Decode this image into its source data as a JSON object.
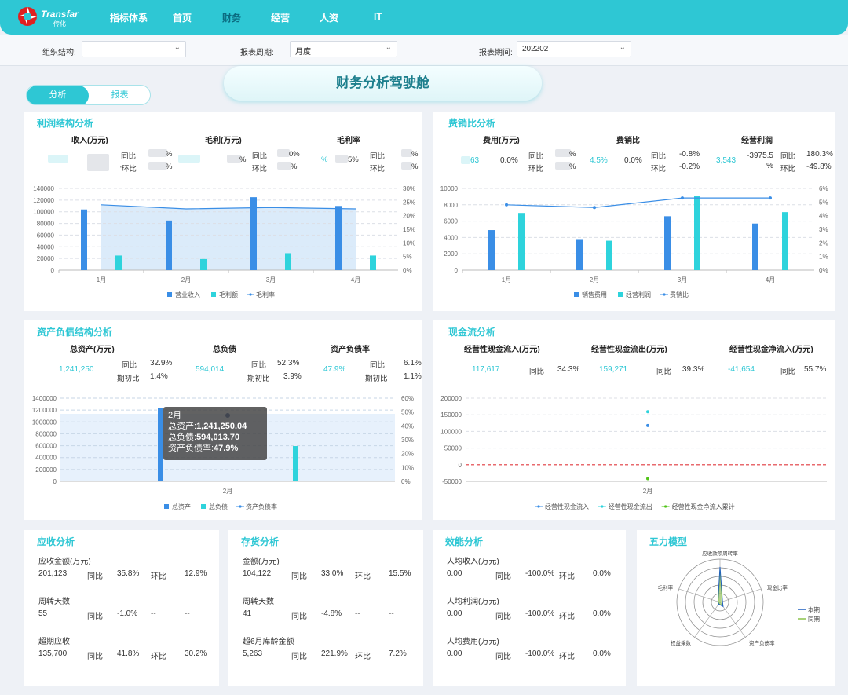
{
  "brand": {
    "name": "Transfar",
    "sub": "传化"
  },
  "nav": [
    {
      "label": "指标体系",
      "active": false
    },
    {
      "label": "首页",
      "active": false
    },
    {
      "label": "财务",
      "active": true
    },
    {
      "label": "经营",
      "active": false
    },
    {
      "label": "人资",
      "active": false
    },
    {
      "label": "IT",
      "active": false
    }
  ],
  "filters": {
    "org_label": "组织结构:",
    "org_value": "",
    "period_label": "报表周期:",
    "period_value": "月度",
    "date_label": "报表期间:",
    "date_value": "202202"
  },
  "tabs": {
    "analysis": "分析",
    "report": "报表"
  },
  "page_title": "财务分析驾驶舱",
  "profit": {
    "title": "利润结构分析",
    "h_income": "收入(万元)",
    "h_gross": "毛利(万元)",
    "h_margin": "毛利率",
    "yoy": "同比",
    "mom": "环比",
    "frag_a": "'环比",
    "frag_b": "%",
    "frag_c": "%",
    "frag_d": "%",
    "frag_e": "0%",
    "frag_f": "%",
    "frag_g": "%",
    "frag_h": "5%",
    "frag_i": "%",
    "frag_j": "%",
    "chart_data": {
      "type": "bar",
      "categories": [
        "1月",
        "2月",
        "3月",
        "4月"
      ],
      "series": [
        {
          "name": "营业收入",
          "values": [
            104000,
            85000,
            125000,
            110000
          ]
        },
        {
          "name": "毛利额",
          "values": [
            25000,
            19000,
            29000,
            25000
          ]
        },
        {
          "name": "毛利率",
          "values": [
            24,
            22.5,
            23,
            22.5
          ]
        }
      ],
      "y_ticks": [
        "140000",
        "120000",
        "100000",
        "80000",
        "60000",
        "40000",
        "20000",
        "0"
      ],
      "y2_ticks": [
        "30%",
        "25%",
        "20%",
        "15%",
        "10%",
        "5%",
        "0%"
      ],
      "ylim": [
        0,
        140000
      ],
      "y2lim": [
        0,
        30
      ]
    }
  },
  "expense": {
    "title": "费销比分析",
    "h_expense": "费用(万元)",
    "h_ratio": "费销比",
    "h_op_profit": "经营利润",
    "expense_value": "63",
    "expense_rate": "0.0%",
    "yoy": "同比",
    "mom": "环比",
    "yoy_frag": "%",
    "mom_frag": "%",
    "ratio_value": "4.5%",
    "ratio_rate": "0.0%",
    "ratio_yoy": "-0.8%",
    "ratio_mom": "-0.2%",
    "op_value": "3,543",
    "op_rate": "-3975.5 %",
    "op_yoy": "180.3%",
    "op_mom": "-49.8%",
    "chart_data": {
      "type": "bar",
      "categories": [
        "1月",
        "2月",
        "3月",
        "4月"
      ],
      "series": [
        {
          "name": "销售费用",
          "values": [
            4900,
            3800,
            6600,
            5700
          ]
        },
        {
          "name": "经营利润",
          "values": [
            7000,
            3600,
            9100,
            7100
          ]
        },
        {
          "name": "费销比",
          "values": [
            4.8,
            4.6,
            5.3,
            5.3
          ]
        }
      ],
      "y_ticks": [
        "10000",
        "8000",
        "6000",
        "4000",
        "2000",
        "0"
      ],
      "y2_ticks": [
        "6%",
        "5%",
        "4%",
        "3%",
        "2%",
        "1%",
        "0%"
      ],
      "ylim": [
        0,
        10000
      ],
      "y2lim": [
        0,
        6
      ]
    }
  },
  "asset": {
    "title": "资产负债结构分析",
    "h_total": "总资产(万元)",
    "h_debt": "总负债",
    "h_ratio": "资产负债率",
    "total_value": "1,241,250",
    "yoy": "同比",
    "base": "期初比",
    "total_yoy": "32.9%",
    "total_base": "1.4%",
    "debt_value": "594,014",
    "debt_yoy": "52.3%",
    "debt_base": "3.9%",
    "ratio_value": "47.9%",
    "ratio_yoy": "6.1%",
    "ratio_base": "1.1%",
    "tooltip": {
      "month": "2月",
      "l1": "总资产:",
      "v1": "1,241,250.04",
      "l2": "总负债:",
      "v2": "594,013.70",
      "l3": "资产负债率:",
      "v3": "47.9%"
    },
    "chart_data": {
      "type": "bar",
      "categories": [
        "2月"
      ],
      "series": [
        {
          "name": "总资产",
          "values": [
            1241250.04
          ]
        },
        {
          "name": "总负债",
          "values": [
            594013.7
          ]
        },
        {
          "name": "资产负债率",
          "values": [
            47.9
          ]
        }
      ],
      "y_ticks": [
        "1400000",
        "1200000",
        "1000000",
        "800000",
        "600000",
        "400000",
        "200000",
        "0"
      ],
      "y2_ticks": [
        "60%",
        "50%",
        "40%",
        "30%",
        "20%",
        "10%",
        "0%"
      ],
      "ylim": [
        0,
        1400000
      ],
      "y2lim": [
        0,
        60
      ]
    }
  },
  "cash": {
    "title": "现金流分析",
    "h_in": "经营性现金流入(万元)",
    "h_out": "经营性现金流出(万元)",
    "h_net": "经营性现金净流入(万元)",
    "yoy": "同比",
    "in_value": "117,617",
    "in_yoy": "34.3%",
    "out_value": "159,271",
    "out_yoy": "39.3%",
    "net_value": "-41,654",
    "net_yoy": "55.7%",
    "chart_data": {
      "type": "scatter",
      "categories": [
        "2月"
      ],
      "series": [
        {
          "name": "经营性现金流入",
          "values": [
            117617
          ]
        },
        {
          "name": "经营性现金流出",
          "values": [
            159271
          ]
        },
        {
          "name": "经营性现金净流入累计",
          "values": [
            -41654
          ]
        }
      ],
      "y_ticks": [
        "200000",
        "150000",
        "100000",
        "50000",
        "0",
        "-50000"
      ],
      "ylim": [
        -50000,
        200000
      ]
    }
  },
  "receivable": {
    "title": "应收分析",
    "rows": [
      {
        "label": "应收金额(万元)",
        "value": "201,123",
        "yoy_label": "同比",
        "yoy": "35.8%",
        "mom_label": "环比",
        "mom": "12.9%"
      },
      {
        "label": "周转天数",
        "value": "55",
        "yoy_label": "同比",
        "yoy": "-1.0%",
        "mom_label": "--",
        "mom": "--"
      },
      {
        "label": "超期应收",
        "value": "135,700",
        "yoy_label": "同比",
        "yoy": "41.8%",
        "mom_label": "环比",
        "mom": "30.2%"
      }
    ]
  },
  "inventory": {
    "title": "存货分析",
    "rows": [
      {
        "label": "金额(万元)",
        "value": "104,122",
        "yoy_label": "同比",
        "yoy": "33.0%",
        "mom_label": "环比",
        "mom": "15.5%"
      },
      {
        "label": "周转天数",
        "value": "41",
        "yoy_label": "同比",
        "yoy": "-4.8%",
        "mom_label": "--",
        "mom": "--"
      },
      {
        "label": "超6月库龄金额",
        "value": "5,263",
        "yoy_label": "同比",
        "yoy": "221.9%",
        "mom_label": "环比",
        "mom": "7.2%"
      }
    ]
  },
  "efficiency": {
    "title": "效能分析",
    "rows": [
      {
        "label": "人均收入(万元)",
        "value": "0.00",
        "yoy_label": "同比",
        "yoy": "-100.0%",
        "mom_label": "环比",
        "mom": "0.0%"
      },
      {
        "label": "人均利润(万元)",
        "value": "0.00",
        "yoy_label": "同比",
        "yoy": "-100.0%",
        "mom_label": "环比",
        "mom": "0.0%"
      },
      {
        "label": "人均费用(万元)",
        "value": "0.00",
        "yoy_label": "同比",
        "yoy": "-100.0%",
        "mom_label": "环比",
        "mom": "0.0%"
      }
    ]
  },
  "five_forces": {
    "title": "五力模型",
    "axes": [
      "应收款项周转率",
      "现金比率",
      "资产负债率",
      "权益乘数",
      "毛利率"
    ],
    "legend": [
      "本期",
      "同期"
    ],
    "chart_data": {
      "type": "radar",
      "categories": [
        "应收款项周转率",
        "现金比率",
        "资产负债率",
        "权益乘数",
        "毛利率"
      ],
      "series": [
        {
          "name": "本期",
          "values": [
            0.82,
            0.06,
            0.12,
            0.05,
            0.05
          ]
        },
        {
          "name": "同期",
          "values": [
            0.78,
            0.05,
            0.1,
            0.04,
            0.04
          ]
        }
      ]
    }
  },
  "colors": {
    "accent": "#2ec7d4",
    "blue": "#3a8ee6",
    "red": "#e0393e",
    "green": "#52c41a"
  }
}
